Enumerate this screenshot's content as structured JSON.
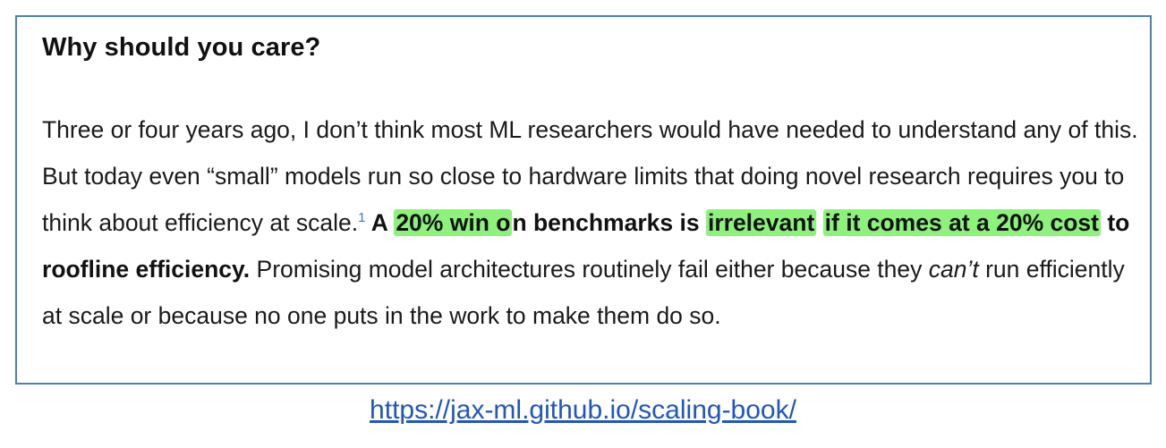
{
  "heading": "Why should you care?",
  "paragraph": {
    "text_before_footnote": "Three or four years ago, I don’t think most ML researchers would have needed to understand any of this. But today even “small” models run so close to hardware limits that doing novel research requires you to think about efficiency at scale.",
    "footnote_marker": "1",
    "bold_lead": " A ",
    "highlight_1": "20% win o",
    "bold_after_highlight_1": "n benchmarks is ",
    "highlight_2": "irrelevant",
    "bold_space": " ",
    "highlight_3": "if it comes at a 20% cost",
    "bold_tail": " to roofline efficiency.",
    "text_after_bold": " Promising model architectures routinely fail either because they ",
    "italic_word": "can’t",
    "text_end": " run efficiently at scale or because no one puts in the work to make them do so."
  },
  "source_link": "https://jax-ml.github.io/scaling-book/",
  "colors": {
    "frame_border": "#4a7fc1",
    "highlight": "#8df27a",
    "link": "#1f56c4",
    "footnote": "#3b7ad0"
  }
}
